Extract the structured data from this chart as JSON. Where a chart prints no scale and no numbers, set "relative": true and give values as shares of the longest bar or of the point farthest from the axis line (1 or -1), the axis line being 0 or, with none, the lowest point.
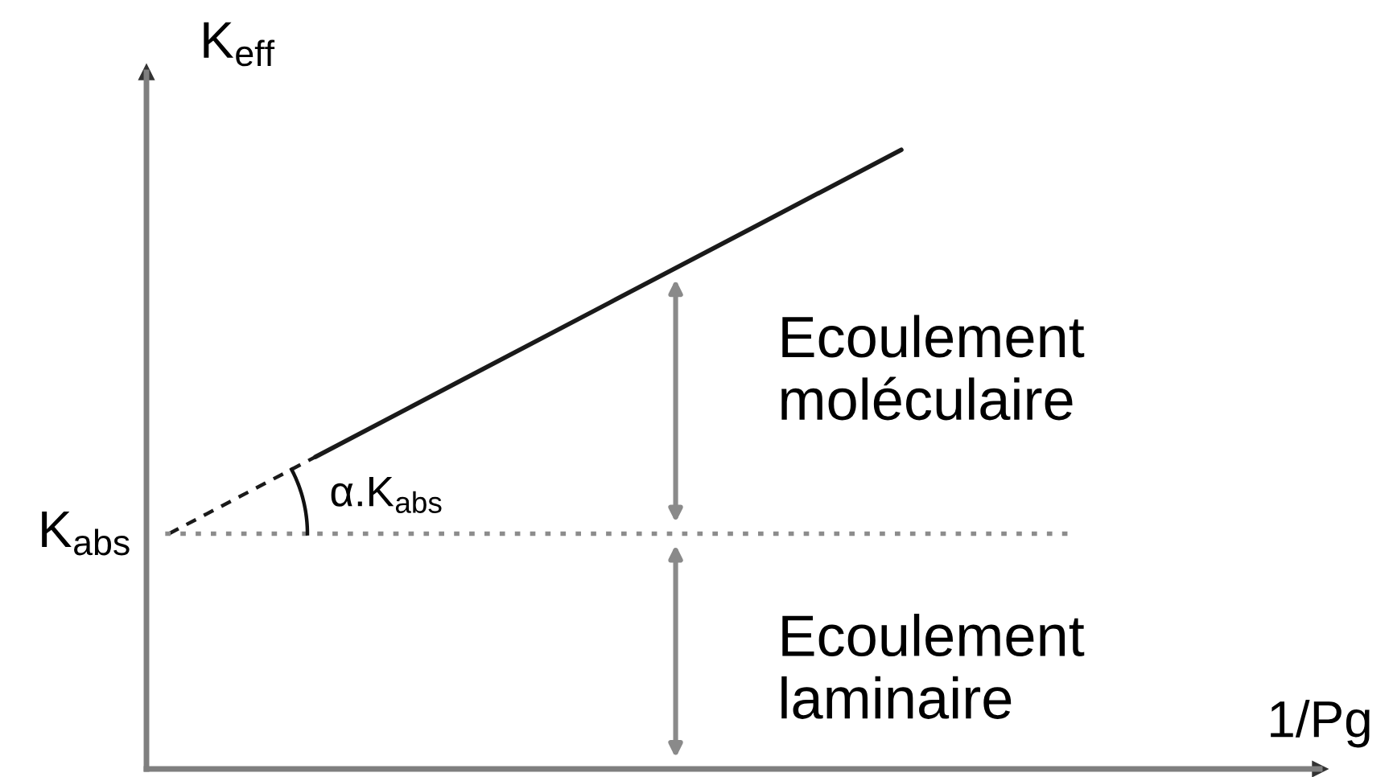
{
  "chart_data": {
    "type": "line",
    "relative": true,
    "xlabel": "1/Pg",
    "ylabel": "K$_{eff}$",
    "categories": [
      null,
      null,
      null,
      null,
      null,
      null
    ],
    "series": [
      {
        "color": "#1a1a1a",
        "line_style": "dashed",
        "values": [
          0.38,
          0.504,
          null,
          null,
          null,
          null
        ]
      },
      {
        "color": "#1a1a1a",
        "line_style": "solid",
        "values": [
          null,
          0.504,
          0.628,
          0.752,
          0.876,
          1
        ]
      }
    ],
    "ref_lines": [
      {
        "axis": "y",
        "value": 0.38,
        "label": "K$_{abs}$",
        "color": "#8c8c8c",
        "line_style": "dotted"
      }
    ],
    "annotations": [
      "α.K$_{abs}$",
      "Ecoulement\nmoléculaire",
      "Ecoulement\nlaminaire"
    ]
  }
}
